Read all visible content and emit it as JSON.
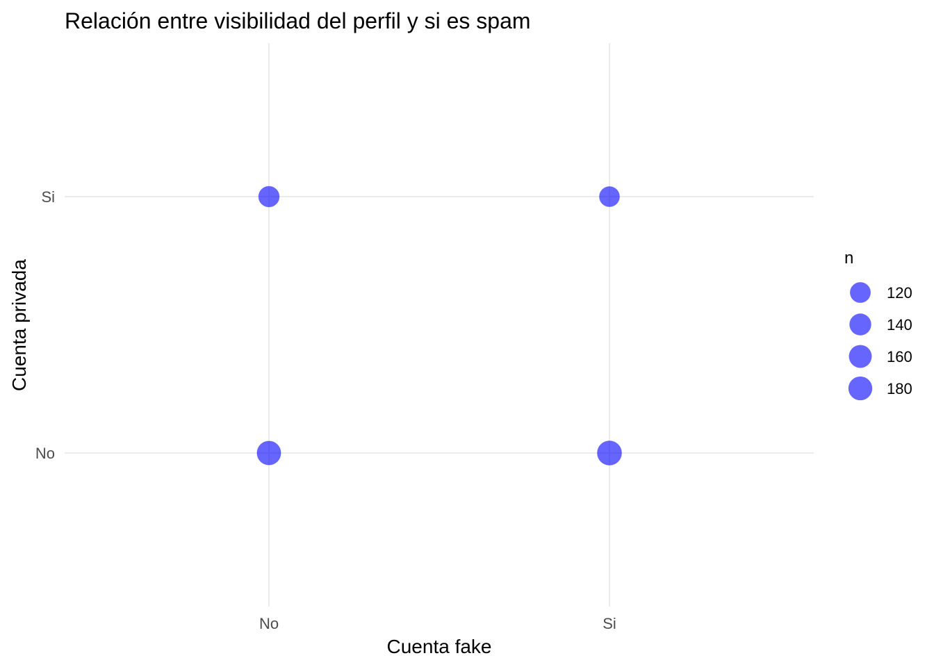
{
  "chart_data": {
    "type": "scatter",
    "title": "Relación entre visibilidad del perfil y si es spam",
    "xlabel": "Cuenta fake",
    "ylabel": "Cuenta privada",
    "x_categories": [
      "No",
      "Si"
    ],
    "y_categories": [
      "No",
      "Si"
    ],
    "points": [
      {
        "x": "No",
        "y": "Si",
        "n": 120
      },
      {
        "x": "Si",
        "y": "Si",
        "n": 110
      },
      {
        "x": "No",
        "y": "No",
        "n": 180
      },
      {
        "x": "Si",
        "y": "No",
        "n": 190
      }
    ],
    "point_color": "#0000FF",
    "point_alpha": 0.6,
    "grid": true,
    "legend": {
      "title": "n",
      "placement": "right",
      "entries": [
        {
          "label": "120",
          "n": 120
        },
        {
          "label": "140",
          "n": 140
        },
        {
          "label": "160",
          "n": 160
        },
        {
          "label": "180",
          "n": 180
        }
      ]
    }
  }
}
